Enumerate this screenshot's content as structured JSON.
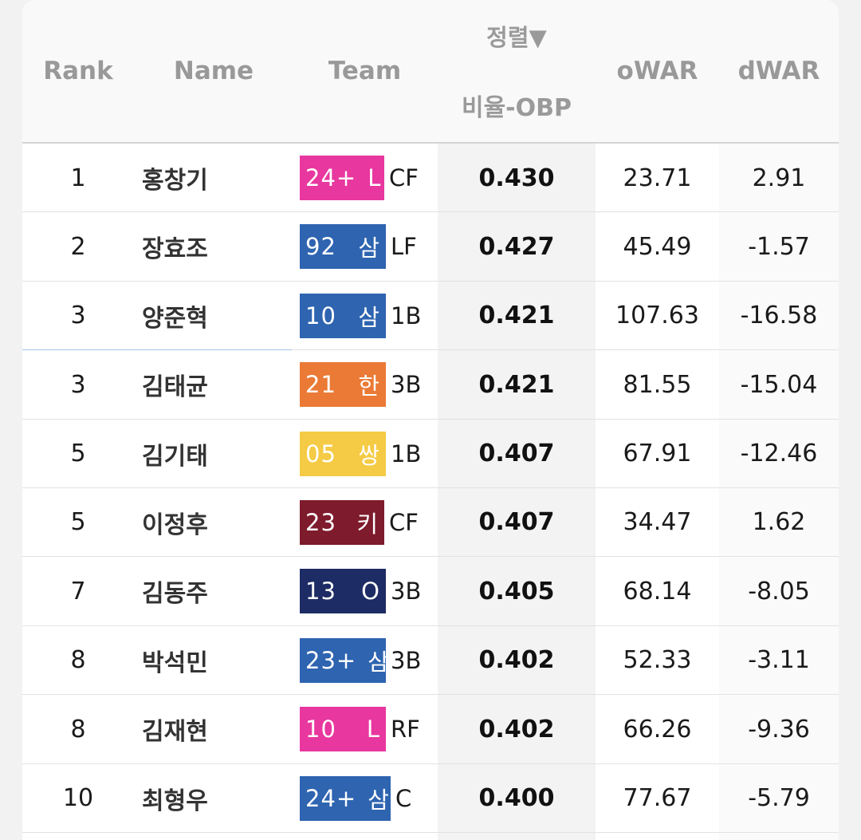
{
  "columns": {
    "rank": "Rank",
    "name": "Name",
    "team": "Team",
    "sort_link": "정렬▼",
    "obp": "비율-OBP",
    "owar": "oWAR",
    "dwar": "dWAR"
  },
  "rows": [
    {
      "rank": "1",
      "name": "홍창기",
      "year": "24+",
      "team": "L",
      "pos": "CF",
      "obp": "0.430",
      "owar": "23.71",
      "dwar": "2.91",
      "color": "#e8379f",
      "width": 106
    },
    {
      "rank": "2",
      "name": "장효조",
      "year": "92",
      "team": "삼",
      "pos": "LF",
      "obp": "0.427",
      "owar": "45.49",
      "dwar": "-1.57",
      "color": "#2e64b0",
      "width": 108
    },
    {
      "rank": "3",
      "name": "양준혁",
      "year": "10",
      "team": "삼",
      "pos": "1B",
      "obp": "0.421",
      "owar": "107.63",
      "dwar": "-16.58",
      "color": "#2e64b0",
      "width": 108
    },
    {
      "rank": "3",
      "name": "김태균",
      "year": "21",
      "team": "한",
      "pos": "3B",
      "obp": "0.421",
      "owar": "81.55",
      "dwar": "-15.04",
      "color": "#ea7a35",
      "width": 108
    },
    {
      "rank": "5",
      "name": "김기태",
      "year": "05",
      "team": "쌍",
      "pos": "1B",
      "obp": "0.407",
      "owar": "67.91",
      "dwar": "-12.46",
      "color": "#f5cb45",
      "width": 108
    },
    {
      "rank": "5",
      "name": "이정후",
      "year": "23",
      "team": "키",
      "pos": "CF",
      "obp": "0.407",
      "owar": "34.47",
      "dwar": "1.62",
      "color": "#7e1b2c",
      "width": 106
    },
    {
      "rank": "7",
      "name": "김동주",
      "year": "13",
      "team": "O",
      "pos": "3B",
      "obp": "0.405",
      "owar": "68.14",
      "dwar": "-8.05",
      "color": "#1d2c64",
      "width": 108
    },
    {
      "rank": "8",
      "name": "박석민",
      "year": "23+",
      "team": "삼",
      "pos": "3B",
      "obp": "0.402",
      "owar": "52.33",
      "dwar": "-3.11",
      "color": "#2e64b0",
      "width": 108
    },
    {
      "rank": "8",
      "name": "김재현",
      "year": "10",
      "team": "L",
      "pos": "RF",
      "obp": "0.402",
      "owar": "66.26",
      "dwar": "-9.36",
      "color": "#e8379f",
      "width": 108
    },
    {
      "rank": "10",
      "name": "최형우",
      "year": "24+",
      "team": "삼",
      "pos": "C",
      "obp": "0.400",
      "owar": "77.67",
      "dwar": "-5.79",
      "color": "#2e64b0",
      "width": 114
    }
  ]
}
